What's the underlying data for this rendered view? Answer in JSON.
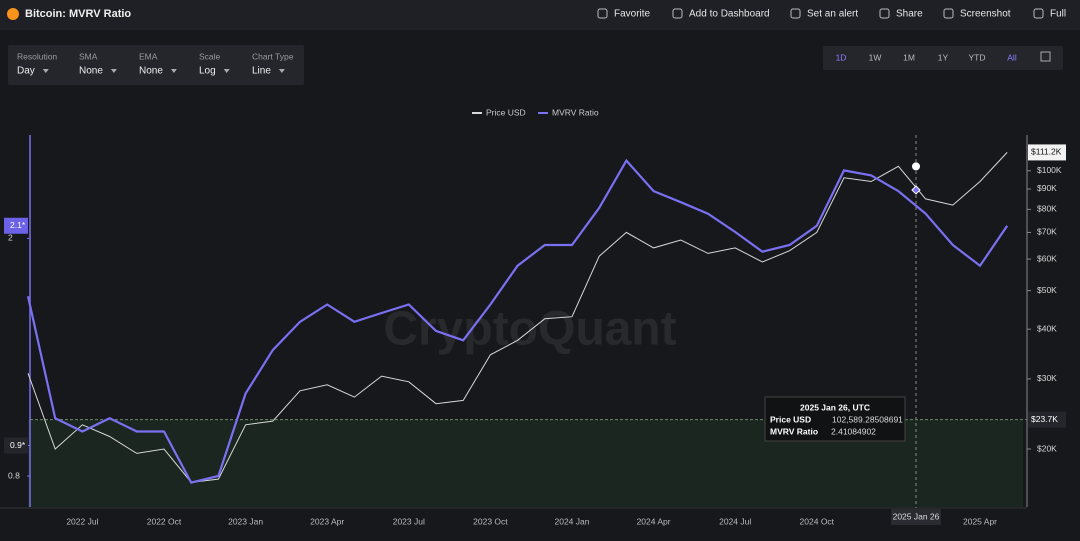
{
  "header": {
    "actions": [
      "Favorite",
      "Add to Dashboard",
      "Set an alert",
      "Share",
      "Screenshot",
      "Full"
    ]
  },
  "controls": [
    {
      "label": "Resolution",
      "value": "Day"
    },
    {
      "label": "SMA",
      "value": "None"
    },
    {
      "label": "EMA",
      "value": "None"
    },
    {
      "label": "Scale",
      "value": "Log"
    },
    {
      "label": "Chart Type",
      "value": "Line"
    }
  ],
  "ranges": [
    "1D",
    "1W",
    "1M",
    "1Y",
    "YTD",
    "All"
  ],
  "selected_range": "All",
  "chart_data": {
    "type": "line",
    "title": "Bitcoin: MVRV Ratio",
    "categories": [
      null,
      null,
      "2022 Jul",
      null,
      null,
      "2022 Oct",
      null,
      null,
      "2023 Jan",
      null,
      null,
      "2023 Apr",
      null,
      null,
      "2023 Jul",
      null,
      null,
      "2023 Oct",
      null,
      null,
      "2024 Jan",
      null,
      null,
      "2024 Apr",
      null,
      null,
      "2024 Jul",
      null,
      null,
      "2024 Oct",
      null,
      null,
      null,
      null,
      null,
      "2025 Apr",
      null
    ],
    "series": [
      {
        "name": "Price USD",
        "color": "#d8d8d8",
        "axis": "y2",
        "values": [
          31000,
          20000,
          23000,
          21500,
          19500,
          20000,
          16500,
          16800,
          23000,
          23500,
          28000,
          29000,
          27000,
          30500,
          29500,
          26000,
          26500,
          34500,
          37500,
          42500,
          43000,
          61000,
          70000,
          64000,
          67000,
          62000,
          64000,
          59000,
          63000,
          70000,
          96000,
          94000,
          102600,
          85000,
          82000,
          94000,
          111200
        ]
      },
      {
        "name": "MVRV Ratio",
        "color": "#7a70f2",
        "values": [
          1.6,
          1.0,
          0.95,
          1.0,
          0.95,
          0.95,
          0.78,
          0.8,
          1.1,
          1.3,
          1.45,
          1.55,
          1.45,
          1.5,
          1.55,
          1.4,
          1.35,
          1.55,
          1.8,
          1.95,
          1.95,
          2.25,
          2.7,
          2.4,
          2.3,
          2.2,
          2.05,
          1.9,
          1.95,
          2.1,
          2.6,
          2.55,
          2.4,
          2.2,
          1.95,
          1.8,
          2.1
        ]
      }
    ],
    "ylim": [
      0.71,
      2.98
    ],
    "yticks": [
      0.8,
      0.9,
      2
    ],
    "y2lim": [
      14300,
      123000
    ],
    "y2ticks": [
      {
        "value": 20000,
        "label": "$20K"
      },
      {
        "value": 30000,
        "label": "$30K"
      },
      {
        "value": 40000,
        "label": "$40K"
      },
      {
        "value": 50000,
        "label": "$50K"
      },
      {
        "value": 60000,
        "label": "$60K"
      },
      {
        "value": 70000,
        "label": "$70K"
      },
      {
        "value": 80000,
        "label": "$80K"
      },
      {
        "value": 90000,
        "label": "$90K"
      },
      {
        "value": 100000,
        "label": "$100K"
      }
    ],
    "log_scale": true,
    "markers": [
      {
        "axis": "y",
        "value": 2.1,
        "label": "2.1*"
      },
      {
        "axis": "y",
        "value": 0.9,
        "label": "0.9*"
      },
      {
        "axis": "y2",
        "value": 111200,
        "label": "$111.2K"
      },
      {
        "axis": "y2",
        "value": 23700,
        "label": "$23.7K"
      }
    ],
    "tooltip": {
      "title": "2025 Jan 26, UTC",
      "rows": [
        {
          "name": "Price USD",
          "value": 102589.28508691,
          "label": "102,589.28508691"
        },
        {
          "name": "MVRV Ratio",
          "value": 2.41084902,
          "label": "2.41084902"
        }
      ]
    },
    "crosshair_label": "2025 Jan 26",
    "watermark": "CryptoQuant"
  }
}
